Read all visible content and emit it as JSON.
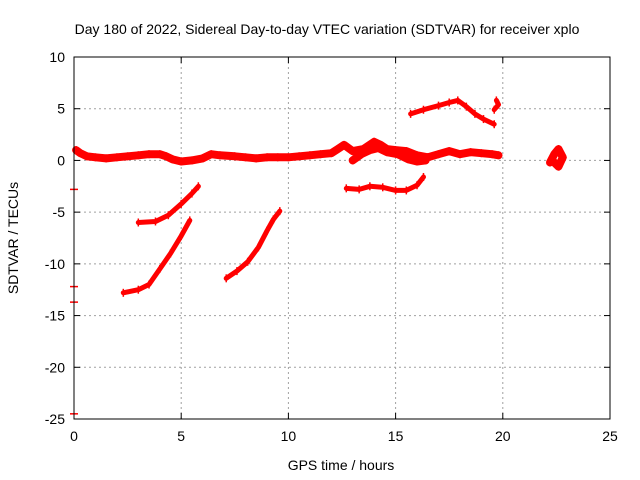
{
  "chart_data": {
    "type": "scatter",
    "title": "Day 180 of 2022, Sidereal Day-to-day VTEC variation (SDTVAR) for receiver xplo",
    "xlabel": "GPS time / hours",
    "ylabel": "SDTVAR / TECUs",
    "xlim": [
      0,
      25
    ],
    "ylim": [
      -25,
      10
    ],
    "xticks": [
      0,
      5,
      10,
      15,
      20,
      25
    ],
    "yticks": [
      10,
      5,
      0,
      -5,
      -10,
      -15,
      -20,
      -25
    ],
    "grid": true,
    "color": "#ff0000",
    "series": [
      {
        "name": "main",
        "points": [
          [
            0.1,
            1.0
          ],
          [
            0.3,
            0.7
          ],
          [
            0.6,
            0.4
          ],
          [
            1.0,
            0.3
          ],
          [
            1.5,
            0.2
          ],
          [
            2.0,
            0.3
          ],
          [
            2.5,
            0.4
          ],
          [
            3.0,
            0.5
          ],
          [
            3.5,
            0.6
          ],
          [
            4.0,
            0.6
          ],
          [
            4.3,
            0.4
          ],
          [
            4.6,
            0.1
          ],
          [
            5.0,
            -0.1
          ],
          [
            5.5,
            0.0
          ],
          [
            6.0,
            0.2
          ],
          [
            6.4,
            0.6
          ],
          [
            6.8,
            0.5
          ],
          [
            7.5,
            0.4
          ],
          [
            8.0,
            0.3
          ],
          [
            8.5,
            0.2
          ],
          [
            9.0,
            0.3
          ],
          [
            9.5,
            0.3
          ],
          [
            10.0,
            0.3
          ],
          [
            10.5,
            0.4
          ],
          [
            11.0,
            0.5
          ],
          [
            11.5,
            0.6
          ],
          [
            12.0,
            0.7
          ],
          [
            12.3,
            1.1
          ],
          [
            12.6,
            1.5
          ],
          [
            13.0,
            0.9
          ],
          [
            13.5,
            1.1
          ],
          [
            14.0,
            1.8
          ],
          [
            14.3,
            1.5
          ],
          [
            14.6,
            1.1
          ],
          [
            15.0,
            1.0
          ],
          [
            15.5,
            0.9
          ],
          [
            16.0,
            0.5
          ],
          [
            16.5,
            0.3
          ],
          [
            17.0,
            0.6
          ],
          [
            17.5,
            0.9
          ],
          [
            18.0,
            0.6
          ],
          [
            18.5,
            0.8
          ],
          [
            19.0,
            0.7
          ],
          [
            19.5,
            0.6
          ],
          [
            19.8,
            0.5
          ]
        ]
      },
      {
        "name": "upper-arc",
        "points": [
          [
            15.7,
            4.5
          ],
          [
            16.3,
            4.9
          ],
          [
            17.0,
            5.3
          ],
          [
            17.5,
            5.6
          ],
          [
            17.9,
            5.8
          ],
          [
            18.3,
            5.2
          ],
          [
            18.7,
            4.5
          ],
          [
            19.1,
            4.0
          ],
          [
            19.6,
            3.5
          ]
        ]
      },
      {
        "name": "upper-short",
        "points": [
          [
            19.6,
            4.9
          ],
          [
            19.8,
            5.4
          ],
          [
            19.7,
            5.8
          ]
        ]
      },
      {
        "name": "mid-band",
        "points": [
          [
            13.0,
            0.0
          ],
          [
            13.4,
            0.6
          ],
          [
            13.8,
            1.0
          ],
          [
            14.2,
            1.2
          ],
          [
            14.6,
            0.8
          ],
          [
            15.1,
            0.6
          ],
          [
            15.6,
            0.1
          ],
          [
            16.0,
            -0.1
          ],
          [
            16.4,
            0.0
          ]
        ]
      },
      {
        "name": "lower-arc",
        "points": [
          [
            12.7,
            -2.7
          ],
          [
            13.3,
            -2.8
          ],
          [
            13.8,
            -2.5
          ],
          [
            14.4,
            -2.6
          ],
          [
            15.0,
            -2.9
          ],
          [
            15.5,
            -2.9
          ],
          [
            16.0,
            -2.4
          ],
          [
            16.3,
            -1.6
          ]
        ]
      },
      {
        "name": "isolated",
        "points": [
          [
            22.2,
            -0.2
          ],
          [
            22.4,
            0.6
          ],
          [
            22.6,
            1.1
          ],
          [
            22.8,
            0.3
          ],
          [
            22.6,
            -0.6
          ],
          [
            22.3,
            0.0
          ]
        ]
      },
      {
        "name": "rise-1",
        "points": [
          [
            3.0,
            -6.0
          ],
          [
            3.8,
            -5.9
          ],
          [
            4.4,
            -5.3
          ],
          [
            5.0,
            -4.2
          ],
          [
            5.5,
            -3.2
          ],
          [
            5.8,
            -2.5
          ]
        ]
      },
      {
        "name": "rise-2",
        "points": [
          [
            2.3,
            -12.8
          ],
          [
            3.0,
            -12.5
          ],
          [
            3.5,
            -12.0
          ],
          [
            4.0,
            -10.5
          ],
          [
            4.5,
            -9.0
          ],
          [
            5.0,
            -7.3
          ],
          [
            5.4,
            -5.8
          ]
        ]
      },
      {
        "name": "rise-3",
        "points": [
          [
            7.1,
            -11.4
          ],
          [
            7.6,
            -10.7
          ],
          [
            8.1,
            -9.8
          ],
          [
            8.6,
            -8.4
          ],
          [
            9.0,
            -6.8
          ],
          [
            9.3,
            -5.7
          ],
          [
            9.6,
            -4.9
          ]
        ]
      },
      {
        "name": "edge-marks",
        "points": [
          [
            0.0,
            -2.8
          ],
          [
            0.0,
            -12.2
          ],
          [
            0.0,
            -13.7
          ],
          [
            0.0,
            -24.5
          ]
        ]
      }
    ]
  }
}
